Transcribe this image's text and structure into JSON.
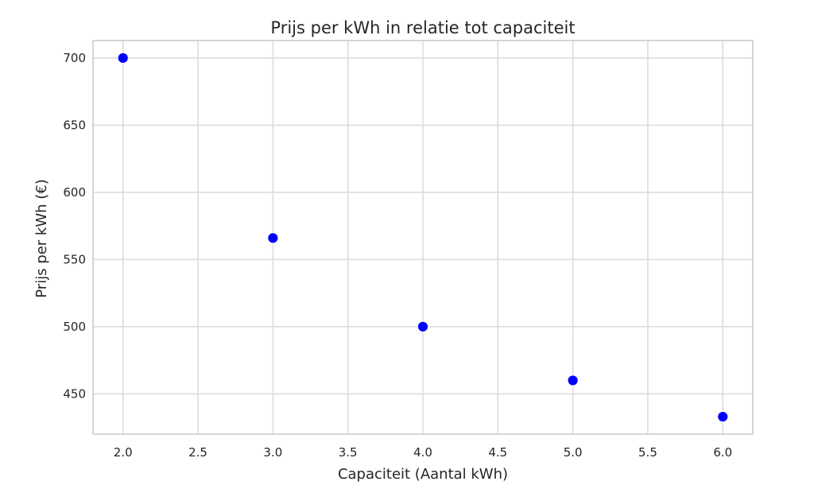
{
  "chart_data": {
    "type": "scatter",
    "title": "Prijs per kWh in relatie tot capaciteit",
    "xlabel": "Capaciteit (Aantal kWh)",
    "ylabel": "Prijs per kWh (€)",
    "x": [
      2.0,
      3.0,
      4.0,
      5.0,
      6.0
    ],
    "y": [
      700,
      566,
      500,
      460,
      433
    ],
    "xlim": [
      1.8,
      6.2
    ],
    "ylim": [
      420,
      713
    ],
    "xticks": [
      2.0,
      2.5,
      3.0,
      3.5,
      4.0,
      4.5,
      5.0,
      5.5,
      6.0
    ],
    "xtick_labels": [
      "2.0",
      "2.5",
      "3.0",
      "3.5",
      "4.0",
      "4.5",
      "5.0",
      "5.5",
      "6.0"
    ],
    "yticks": [
      450,
      500,
      550,
      600,
      650,
      700
    ],
    "ytick_labels": [
      "450",
      "500",
      "550",
      "600",
      "650",
      "700"
    ],
    "grid": true,
    "marker_color": "#0000ff"
  }
}
